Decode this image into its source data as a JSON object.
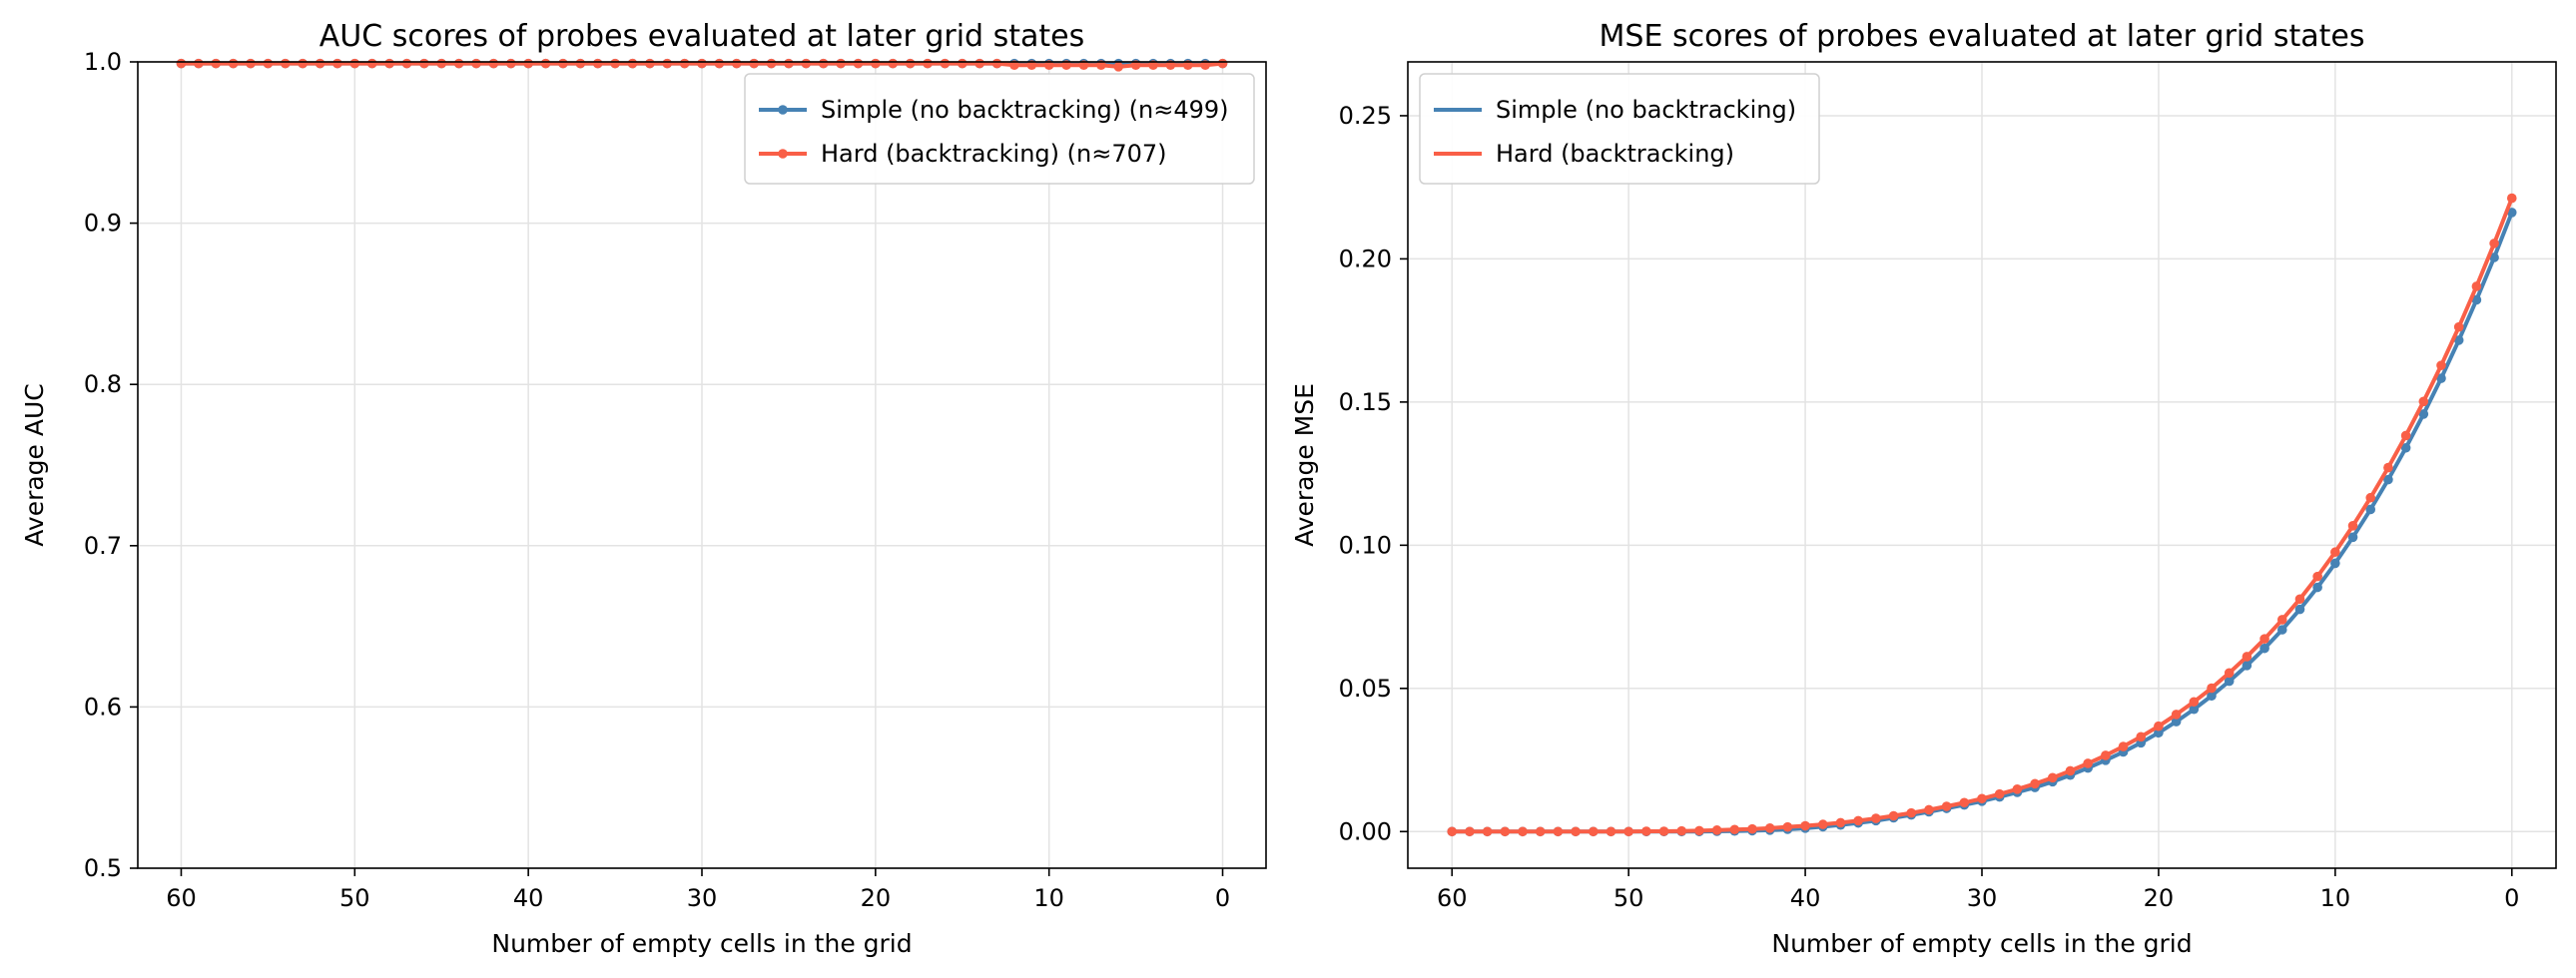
{
  "chart_data": [
    {
      "type": "line",
      "title": "AUC scores of probes evaluated at later grid states",
      "xlabel": "Number of empty cells in the grid",
      "ylabel": "Average AUC",
      "xlim": [
        62.5,
        -2.5
      ],
      "ylim": [
        0.5,
        1.0
      ],
      "xticks": [
        60,
        50,
        40,
        30,
        20,
        10,
        0
      ],
      "yticks": [
        0.5,
        0.6,
        0.7,
        0.8,
        0.9,
        1.0
      ],
      "yticklabels": [
        "0.5",
        "0.6",
        "0.7",
        "0.8",
        "0.9",
        "1.0"
      ],
      "grid": true,
      "legend": "top-right",
      "series": [
        {
          "name": "Simple (no backtracking) (n≈499)",
          "color": "#4682b4",
          "x": [
            60,
            59,
            58,
            57,
            56,
            55,
            54,
            53,
            52,
            51,
            50,
            49,
            48,
            47,
            46,
            45,
            44,
            43,
            42,
            41,
            40,
            39,
            38,
            37,
            36,
            35,
            34,
            33,
            32,
            31,
            30,
            29,
            28,
            27,
            26,
            25,
            24,
            23,
            22,
            21,
            20,
            19,
            18,
            17,
            16,
            15,
            14,
            13,
            12,
            11,
            10,
            9,
            8,
            7,
            6,
            5,
            4,
            3,
            2,
            1,
            0
          ],
          "y": [
            0.999,
            0.999,
            0.999,
            0.999,
            0.999,
            0.999,
            0.999,
            0.999,
            0.999,
            0.999,
            0.999,
            0.999,
            0.999,
            0.999,
            0.999,
            0.999,
            0.999,
            0.999,
            0.999,
            0.999,
            0.999,
            0.999,
            0.999,
            0.999,
            0.999,
            0.999,
            0.999,
            0.999,
            0.999,
            0.999,
            0.999,
            0.999,
            0.999,
            0.999,
            0.999,
            0.999,
            0.999,
            0.999,
            0.999,
            0.999,
            0.999,
            0.999,
            0.999,
            0.999,
            0.999,
            0.999,
            0.999,
            0.999,
            0.999,
            0.999,
            0.999,
            0.999,
            0.999,
            0.999,
            0.999,
            0.999,
            0.999,
            0.999,
            0.999,
            0.999,
            0.999
          ]
        },
        {
          "name": "Hard (backtracking) (n≈707)",
          "color": "#f95f47",
          "x": [
            60,
            59,
            58,
            57,
            56,
            55,
            54,
            53,
            52,
            51,
            50,
            49,
            48,
            47,
            46,
            45,
            44,
            43,
            42,
            41,
            40,
            39,
            38,
            37,
            36,
            35,
            34,
            33,
            32,
            31,
            30,
            29,
            28,
            27,
            26,
            25,
            24,
            23,
            22,
            21,
            20,
            19,
            18,
            17,
            16,
            15,
            14,
            13,
            12,
            11,
            10,
            9,
            8,
            7,
            6,
            5,
            4,
            3,
            2,
            1,
            0
          ],
          "y": [
            0.999,
            0.999,
            0.999,
            0.999,
            0.999,
            0.999,
            0.999,
            0.999,
            0.999,
            0.999,
            0.999,
            0.999,
            0.999,
            0.999,
            0.999,
            0.999,
            0.999,
            0.999,
            0.999,
            0.999,
            0.999,
            0.999,
            0.999,
            0.999,
            0.999,
            0.999,
            0.999,
            0.999,
            0.999,
            0.999,
            0.999,
            0.999,
            0.999,
            0.999,
            0.999,
            0.999,
            0.999,
            0.999,
            0.999,
            0.999,
            0.999,
            0.999,
            0.999,
            0.999,
            0.999,
            0.999,
            0.999,
            0.999,
            0.998,
            0.998,
            0.998,
            0.998,
            0.998,
            0.998,
            0.997,
            0.998,
            0.998,
            0.998,
            0.998,
            0.998,
            0.999
          ]
        }
      ]
    },
    {
      "type": "line",
      "title": "MSE scores of probes evaluated at later grid states",
      "xlabel": "Number of empty cells in the grid",
      "ylabel": "Average MSE",
      "xlim": [
        62.5,
        -2.5
      ],
      "ylim": [
        -0.0128,
        0.2688
      ],
      "xticks": [
        60,
        50,
        40,
        30,
        20,
        10,
        0
      ],
      "yticks": [
        0.0,
        0.05,
        0.1,
        0.15,
        0.2,
        0.25
      ],
      "yticklabels": [
        "0.00",
        "0.05",
        "0.10",
        "0.15",
        "0.20",
        "0.25"
      ],
      "grid": true,
      "legend": "top-left",
      "series": [
        {
          "name": "Simple (no backtracking)",
          "color": "#4682b4",
          "x": [
            60,
            59,
            58,
            57,
            56,
            55,
            54,
            53,
            52,
            51,
            50,
            49,
            48,
            47,
            46,
            45,
            44,
            43,
            42,
            41,
            40,
            39,
            38,
            37,
            36,
            35,
            34,
            33,
            32,
            31,
            30,
            29,
            28,
            27,
            26,
            25,
            24,
            23,
            22,
            21,
            20,
            19,
            18,
            17,
            16,
            15,
            14,
            13,
            12,
            11,
            10,
            9,
            8,
            7,
            6,
            5,
            4,
            3,
            2,
            1,
            0
          ],
          "y": [
            0.0,
            0.0,
            0.0,
            0.0,
            0.0,
            0.0,
            0.0,
            0.0,
            0.0,
            0.0,
            0.0,
            0.0,
            0.0,
            0.0,
            0.0,
            0.0001,
            0.0002,
            0.0003,
            0.0005,
            0.0008,
            0.0012,
            0.0017,
            0.0023,
            0.003,
            0.0038,
            0.0048,
            0.0058,
            0.0069,
            0.0081,
            0.0093,
            0.0106,
            0.0121,
            0.0137,
            0.0154,
            0.0174,
            0.0197,
            0.0222,
            0.0249,
            0.0278,
            0.031,
            0.0345,
            0.0384,
            0.0427,
            0.0474,
            0.0525,
            0.058,
            0.064,
            0.0705,
            0.0776,
            0.0853,
            0.0937,
            0.1028,
            0.1125,
            0.1229,
            0.134,
            0.1458,
            0.1583,
            0.1716,
            0.1857,
            0.2005,
            0.2162
          ]
        },
        {
          "name": "Hard (backtracking)",
          "color": "#f95f47",
          "x": [
            60,
            59,
            58,
            57,
            56,
            55,
            54,
            53,
            52,
            51,
            50,
            49,
            48,
            47,
            46,
            45,
            44,
            43,
            42,
            41,
            40,
            39,
            38,
            37,
            36,
            35,
            34,
            33,
            32,
            31,
            30,
            29,
            28,
            27,
            26,
            25,
            24,
            23,
            22,
            21,
            20,
            19,
            18,
            17,
            16,
            15,
            14,
            13,
            12,
            11,
            10,
            9,
            8,
            7,
            6,
            5,
            4,
            3,
            2,
            1,
            0
          ],
          "y": [
            0.0,
            0.0,
            0.0,
            0.0,
            0.0,
            0.0,
            0.0,
            0.0,
            0.0,
            0.0,
            0.0,
            0.0001,
            0.0001,
            0.0002,
            0.0003,
            0.0005,
            0.0007,
            0.0009,
            0.0012,
            0.0016,
            0.002,
            0.0025,
            0.0031,
            0.0038,
            0.0046,
            0.0055,
            0.0065,
            0.0076,
            0.0088,
            0.0101,
            0.0115,
            0.0131,
            0.0148,
            0.0167,
            0.0188,
            0.0212,
            0.0238,
            0.0266,
            0.0297,
            0.0331,
            0.0368,
            0.0409,
            0.0453,
            0.0501,
            0.0554,
            0.0611,
            0.0673,
            0.074,
            0.0812,
            0.0891,
            0.0976,
            0.1068,
            0.1166,
            0.1271,
            0.1383,
            0.1502,
            0.1628,
            0.1762,
            0.1904,
            0.2054,
            0.2212
          ]
        }
      ]
    }
  ]
}
